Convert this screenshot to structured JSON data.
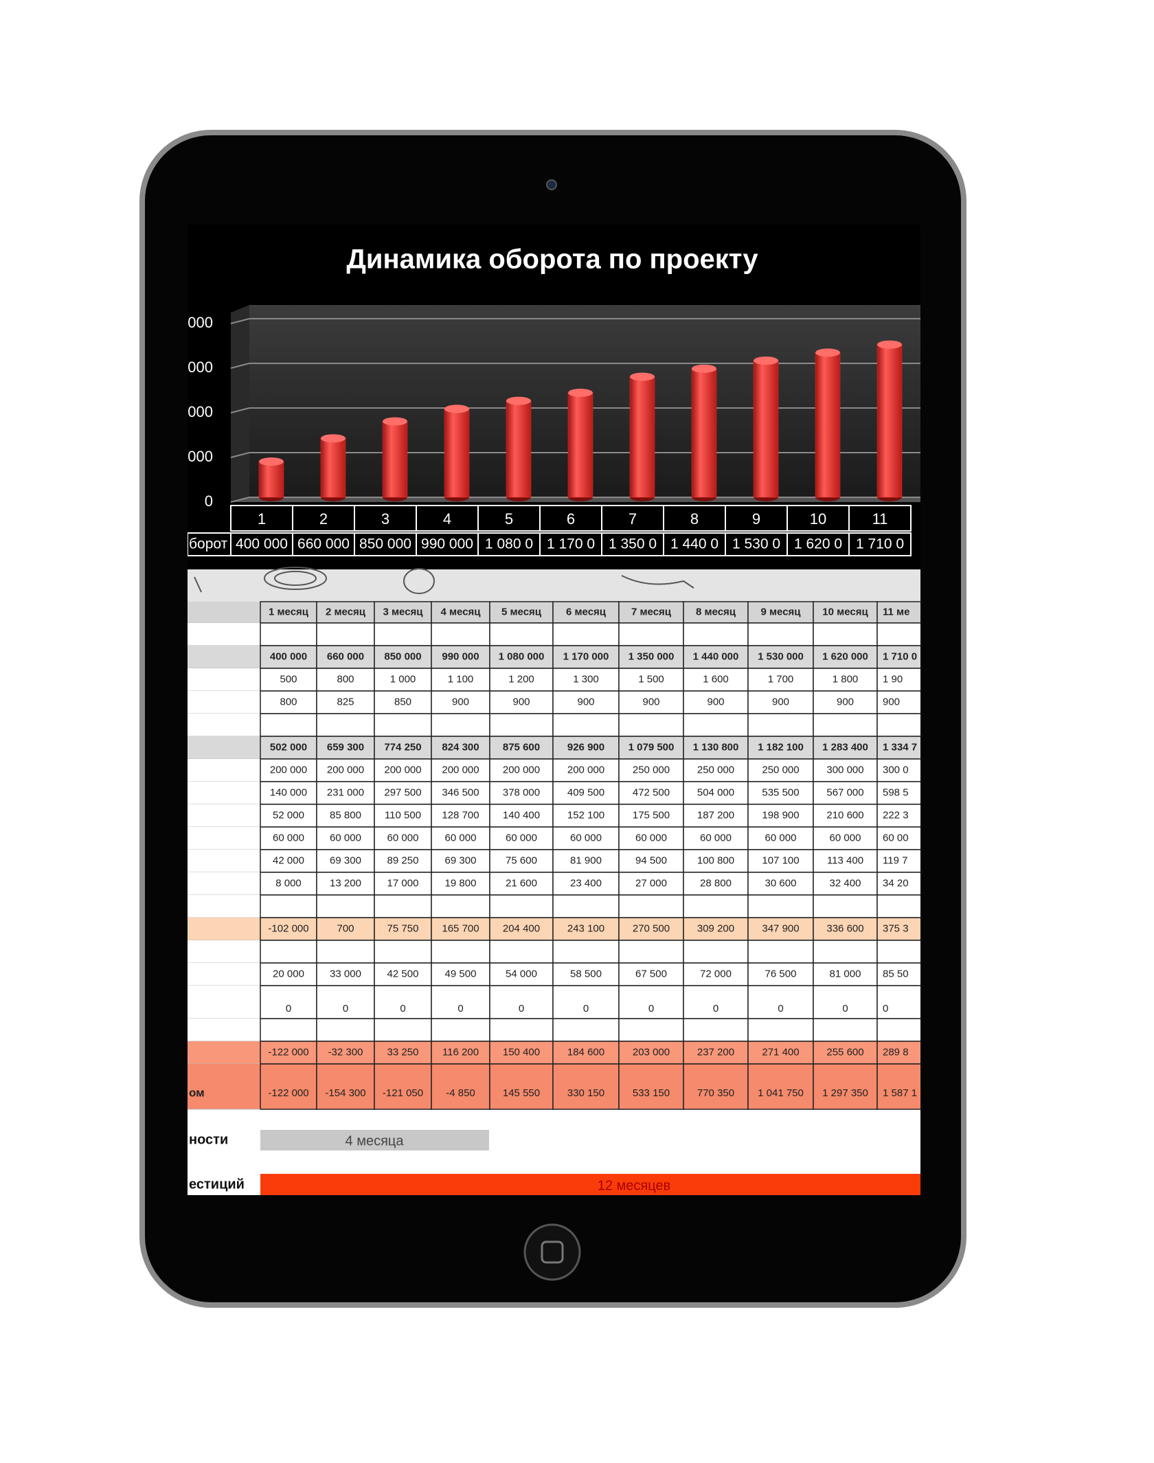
{
  "chart_data": {
    "type": "bar",
    "title": "Динамика оборота по проекту",
    "categories": [
      "1",
      "2",
      "3",
      "4",
      "5",
      "6",
      "7",
      "8",
      "9",
      "10",
      "11"
    ],
    "series": [
      {
        "name": "борот",
        "color": "#e8302c",
        "values": [
          400000,
          660000,
          850000,
          990000,
          1080000,
          1170000,
          1350000,
          1440000,
          1530000,
          1620000,
          1710000
        ],
        "value_labels": [
          "400 000",
          "660 000",
          "850 000",
          "990 000",
          "1 080 0",
          "1 170 0",
          "1 350 0",
          "1 440 0",
          "1 530 0",
          "1 620 0",
          "1 710 0"
        ]
      }
    ],
    "ylim": [
      0,
      2000000
    ],
    "yticks": [
      0,
      {
        "value": 500000,
        "label": "000"
      },
      {
        "value": 1000000,
        "label": "000"
      },
      {
        "value": 1500000,
        "label": "000"
      },
      {
        "value": 2000000,
        "label": "000"
      }
    ],
    "grid": true
  },
  "table": {
    "header": [
      "1 месяц",
      "2 месяц",
      "3 месяц",
      "4 месяц",
      "5 месяц",
      "6 месяц",
      "7 месяц",
      "8 месяц",
      "9 месяц",
      "10 месяц",
      "11 ме"
    ],
    "rows": [
      {
        "cells": [
          "400 000",
          "660 000",
          "850 000",
          "990 000",
          "1 080 000",
          "1 170 000",
          "1 350 000",
          "1 440 000",
          "1 530 000",
          "1 620 000",
          "1 710 0"
        ]
      },
      {
        "cells": [
          "500",
          "800",
          "1 000",
          "1 100",
          "1 200",
          "1 300",
          "1 500",
          "1 600",
          "1 700",
          "1 800",
          "1 90"
        ]
      },
      {
        "cells": [
          "800",
          "825",
          "850",
          "900",
          "900",
          "900",
          "900",
          "900",
          "900",
          "900",
          "900"
        ]
      },
      {
        "cells": [
          "502 000",
          "659 300",
          "774 250",
          "824 300",
          "875 600",
          "926 900",
          "1 079 500",
          "1 130 800",
          "1 182 100",
          "1 283 400",
          "1 334 7"
        ]
      },
      {
        "cells": [
          "200 000",
          "200 000",
          "200 000",
          "200 000",
          "200 000",
          "200 000",
          "250 000",
          "250 000",
          "250 000",
          "300 000",
          "300 0"
        ]
      },
      {
        "cells": [
          "140 000",
          "231 000",
          "297 500",
          "346 500",
          "378 000",
          "409 500",
          "472 500",
          "504 000",
          "535 500",
          "567 000",
          "598 5"
        ]
      },
      {
        "cells": [
          "52 000",
          "85 800",
          "110 500",
          "128 700",
          "140 400",
          "152 100",
          "175 500",
          "187 200",
          "198 900",
          "210 600",
          "222 3"
        ]
      },
      {
        "cells": [
          "60 000",
          "60 000",
          "60 000",
          "60 000",
          "60 000",
          "60 000",
          "60 000",
          "60 000",
          "60 000",
          "60 000",
          "60 00"
        ]
      },
      {
        "cells": [
          "42 000",
          "69 300",
          "89 250",
          "69 300",
          "75 600",
          "81 900",
          "94 500",
          "100 800",
          "107 100",
          "113 400",
          "119 7"
        ]
      },
      {
        "cells": [
          "8 000",
          "13 200",
          "17 000",
          "19 800",
          "21 600",
          "23 400",
          "27 000",
          "28 800",
          "30 600",
          "32 400",
          "34 20"
        ]
      },
      {
        "cells": [
          "-102 000",
          "700",
          "75 750",
          "165 700",
          "204 400",
          "243 100",
          "270 500",
          "309 200",
          "347 900",
          "336 600",
          "375 3"
        ]
      },
      {
        "cells": [
          "20 000",
          "33 000",
          "42 500",
          "49 500",
          "54 000",
          "58 500",
          "67 500",
          "72 000",
          "76 500",
          "81 000",
          "85 50"
        ]
      },
      {
        "cells": [
          "0",
          "0",
          "0",
          "0",
          "0",
          "0",
          "0",
          "0",
          "0",
          "0",
          "0"
        ]
      },
      {
        "cells": [
          "-122 000",
          "-32 300",
          "33 250",
          "116 200",
          "150 400",
          "184 600",
          "203 000",
          "237 200",
          "271 400",
          "255 600",
          "289 8"
        ]
      },
      {
        "label": "ом",
        "cells": [
          "-122 000",
          "-154 300",
          "-121 050",
          "-4 850",
          "145 550",
          "330 150",
          "533 150",
          "770 350",
          "1 041 750",
          "1 297 350",
          "1 587 1"
        ]
      }
    ]
  },
  "summary": [
    {
      "label": "ности",
      "value": "4 месяца"
    },
    {
      "label": "естиций",
      "value": "12 месяцев"
    }
  ]
}
